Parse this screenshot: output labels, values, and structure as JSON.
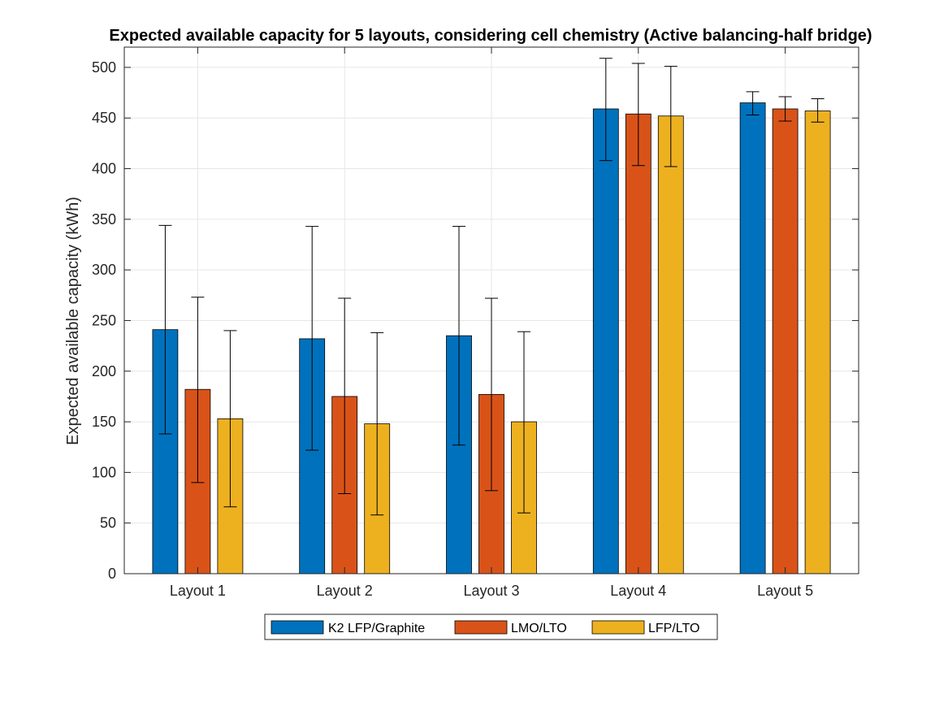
{
  "chart_data": {
    "type": "bar",
    "title": "Expected available capacity for 5 layouts, considering cell chemistry (Active balancing-half bridge)",
    "xlabel": "",
    "ylabel": "Expected available capacity (kWh)",
    "ylim": [
      0,
      520
    ],
    "yticks": [
      0,
      50,
      100,
      150,
      200,
      250,
      300,
      350,
      400,
      450,
      500
    ],
    "grid": true,
    "legend_position": "bottom-center",
    "categories": [
      "Layout 1",
      "Layout 2",
      "Layout 3",
      "Layout 4",
      "Layout 5"
    ],
    "series": [
      {
        "name": "K2 LFP/Graphite",
        "color": "#0072BD",
        "values": [
          241,
          232,
          235,
          459,
          465
        ],
        "error_low": [
          138,
          122,
          127,
          408,
          453
        ],
        "error_high": [
          344,
          343,
          343,
          509,
          476
        ]
      },
      {
        "name": "LMO/LTO",
        "color": "#D95319",
        "values": [
          182,
          175,
          177,
          454,
          459
        ],
        "error_low": [
          90,
          79,
          82,
          403,
          447
        ],
        "error_high": [
          273,
          272,
          272,
          504,
          471
        ]
      },
      {
        "name": "LFP/LTO",
        "color": "#EDB120",
        "values": [
          153,
          148,
          150,
          452,
          457
        ],
        "error_low": [
          66,
          58,
          60,
          402,
          446
        ],
        "error_high": [
          240,
          238,
          239,
          501,
          469
        ]
      }
    ]
  }
}
